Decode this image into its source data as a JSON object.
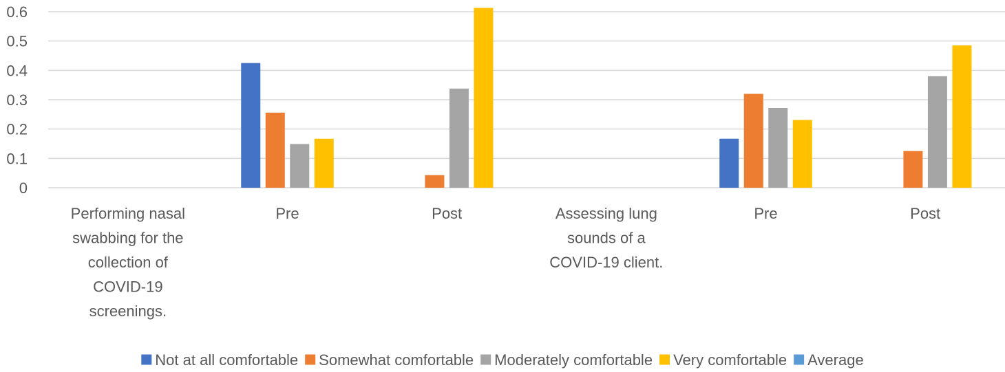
{
  "chart_data": {
    "type": "bar",
    "title": "",
    "xlabel": "",
    "ylabel": "",
    "ylim": [
      0,
      0.6
    ],
    "yticks": [
      "0",
      "0.1",
      "0.2",
      "0.3",
      "0.4",
      "0.5",
      "0.6"
    ],
    "grid": true,
    "legend_position": "bottom",
    "categories": [
      "Performing nasal swabbing for the collection of COVID-19 screenings.",
      "Pre",
      "Post",
      "Assessing lung sounds of a COVID-19 client.",
      "Pre",
      "Post"
    ],
    "category_lines": [
      [
        "Performing nasal",
        "swabbing for the",
        "collection of",
        "COVID-19",
        "screenings."
      ],
      [
        "Pre"
      ],
      [
        "Post"
      ],
      [
        "Assessing lung",
        "sounds of a",
        "COVID-19 client."
      ],
      [
        "Pre"
      ],
      [
        "Post"
      ]
    ],
    "series": [
      {
        "name": "Not at all comfortable",
        "color": "#4472c4",
        "values": [
          null,
          0.425,
          0,
          null,
          0.167,
          0
        ]
      },
      {
        "name": "Somewhat comfortable",
        "color": "#ed7d31",
        "values": [
          null,
          0.256,
          0.043,
          null,
          0.32,
          0.125
        ]
      },
      {
        "name": "Moderately comfortable",
        "color": "#a5a5a5",
        "values": [
          null,
          0.149,
          0.338,
          null,
          0.272,
          0.38
        ]
      },
      {
        "name": "Very comfortable",
        "color": "#ffc000",
        "values": [
          null,
          0.167,
          0.613,
          null,
          0.231,
          0.485
        ]
      },
      {
        "name": "Average",
        "color": "#5b9bd5",
        "values": [
          null,
          null,
          null,
          null,
          null,
          null
        ]
      }
    ]
  }
}
